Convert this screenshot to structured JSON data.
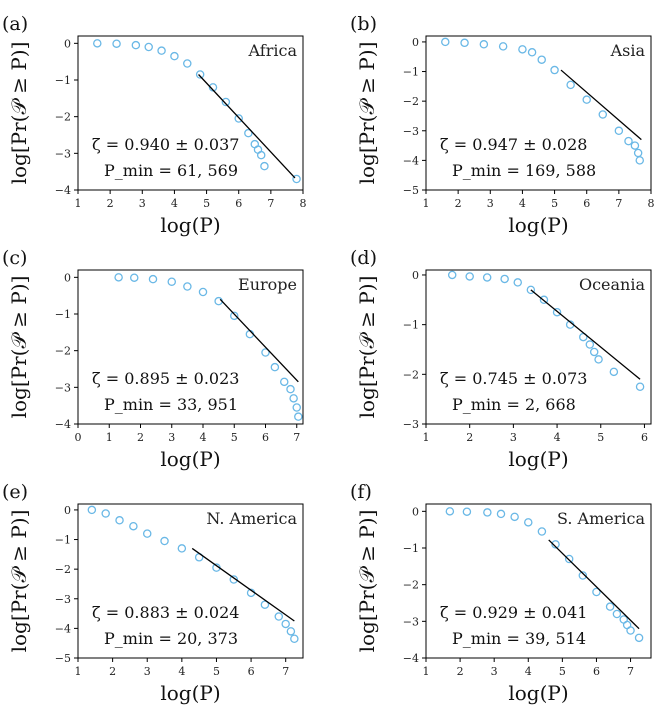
{
  "figure": {
    "xlabel": "log(P)",
    "ylabel": "log[Pr(𝒫 ≥ P)]"
  },
  "colors": {
    "marker": "#6ab8e6",
    "fit": "#000000",
    "axis": "#000000"
  },
  "chart_data": [
    {
      "type": "scatter",
      "panel_label": "(a)",
      "region": "Africa",
      "xlim": [
        1,
        8
      ],
      "ylim": [
        -4,
        0.2
      ],
      "xticks": [
        1,
        2,
        3,
        4,
        5,
        6,
        7,
        8
      ],
      "yticks": [
        0,
        -1,
        -2,
        -3,
        -4
      ],
      "series": [
        {
          "name": "empirical CCDF",
          "x": [
            1.6,
            2.2,
            2.8,
            3.2,
            3.6,
            4.0,
            4.4,
            4.8,
            5.2,
            5.6,
            6.0,
            6.3,
            6.5,
            6.6,
            6.7,
            6.8,
            7.8
          ],
          "y": [
            0,
            -0.01,
            -0.05,
            -0.1,
            -0.2,
            -0.35,
            -0.55,
            -0.85,
            -1.2,
            -1.6,
            -2.05,
            -2.45,
            -2.75,
            -2.9,
            -3.05,
            -3.35,
            -3.7
          ]
        }
      ],
      "fit": {
        "x": [
          4.75,
          7.75
        ],
        "y": [
          -0.85,
          -3.67
        ]
      },
      "zeta": "ζ = 0.940 ± 0.037",
      "pmin": "P_min = 61, 569"
    },
    {
      "type": "scatter",
      "panel_label": "(b)",
      "region": "Asia",
      "xlim": [
        1,
        8
      ],
      "ylim": [
        -5,
        0.2
      ],
      "xticks": [
        1,
        2,
        3,
        4,
        5,
        6,
        7,
        8
      ],
      "yticks": [
        0,
        -1,
        -2,
        -3,
        -4,
        -5
      ],
      "series": [
        {
          "name": "empirical CCDF",
          "x": [
            1.6,
            2.2,
            2.8,
            3.4,
            4.0,
            4.3,
            4.6,
            5.0,
            5.5,
            6.0,
            6.5,
            7.0,
            7.3,
            7.5,
            7.6,
            7.65
          ],
          "y": [
            0,
            -0.03,
            -0.08,
            -0.15,
            -0.25,
            -0.35,
            -0.6,
            -0.95,
            -1.45,
            -1.95,
            -2.45,
            -3.0,
            -3.35,
            -3.5,
            -3.75,
            -4.0
          ]
        }
      ],
      "fit": {
        "x": [
          5.2,
          7.7
        ],
        "y": [
          -0.95,
          -3.3
        ]
      },
      "zeta": "ζ = 0.947 ± 0.028",
      "pmin": "P_min = 169, 588"
    },
    {
      "type": "scatter",
      "panel_label": "(c)",
      "region": "Europe",
      "xlim": [
        0,
        7.2
      ],
      "ylim": [
        -4,
        0.2
      ],
      "xticks": [
        0,
        1,
        2,
        3,
        4,
        5,
        6,
        7
      ],
      "yticks": [
        0,
        -1,
        -2,
        -3,
        -4
      ],
      "series": [
        {
          "name": "empirical CCDF",
          "x": [
            1.3,
            1.8,
            2.4,
            3.0,
            3.5,
            4.0,
            4.5,
            5.0,
            5.5,
            6.0,
            6.3,
            6.6,
            6.8,
            6.9,
            7.0,
            7.05
          ],
          "y": [
            0,
            -0.01,
            -0.05,
            -0.12,
            -0.25,
            -0.4,
            -0.65,
            -1.05,
            -1.55,
            -2.05,
            -2.45,
            -2.85,
            -3.05,
            -3.3,
            -3.55,
            -3.8
          ]
        }
      ],
      "fit": {
        "x": [
          4.55,
          7.05
        ],
        "y": [
          -0.6,
          -2.85
        ]
      },
      "zeta": "ζ = 0.895 ± 0.023",
      "pmin": "P_min = 33, 951"
    },
    {
      "type": "scatter",
      "panel_label": "(d)",
      "region": "Oceania",
      "xlim": [
        1,
        6.15
      ],
      "ylim": [
        -3,
        0.1
      ],
      "xticks": [
        1,
        2,
        3,
        4,
        5,
        6
      ],
      "yticks": [
        0,
        -1,
        -2,
        -3
      ],
      "series": [
        {
          "name": "empirical CCDF",
          "x": [
            1.6,
            2.0,
            2.4,
            2.8,
            3.1,
            3.4,
            3.7,
            4.0,
            4.3,
            4.6,
            4.75,
            4.85,
            4.95,
            5.3,
            5.9
          ],
          "y": [
            0,
            -0.03,
            -0.05,
            -0.08,
            -0.15,
            -0.3,
            -0.5,
            -0.75,
            -1.0,
            -1.25,
            -1.4,
            -1.55,
            -1.7,
            -1.95,
            -2.25
          ]
        }
      ],
      "fit": {
        "x": [
          3.4,
          5.9
        ],
        "y": [
          -0.3,
          -2.1
        ]
      },
      "zeta": "ζ = 0.745 ± 0.073",
      "pmin": "P_min = 2, 668"
    },
    {
      "type": "scatter",
      "panel_label": "(e)",
      "region": "N. America",
      "xlim": [
        1,
        7.5
      ],
      "ylim": [
        -5,
        0.2
      ],
      "xticks": [
        1,
        2,
        3,
        4,
        5,
        6,
        7
      ],
      "yticks": [
        0,
        -1,
        -2,
        -3,
        -4,
        -5
      ],
      "series": [
        {
          "name": "empirical CCDF",
          "x": [
            1.4,
            1.8,
            2.2,
            2.6,
            3.0,
            3.5,
            4.0,
            4.5,
            5.0,
            5.5,
            6.0,
            6.4,
            6.8,
            7.0,
            7.15,
            7.25
          ],
          "y": [
            0,
            -0.12,
            -0.35,
            -0.55,
            -0.8,
            -1.05,
            -1.3,
            -1.6,
            -1.95,
            -2.35,
            -2.8,
            -3.2,
            -3.6,
            -3.85,
            -4.1,
            -4.35
          ]
        }
      ],
      "fit": {
        "x": [
          4.3,
          7.25
        ],
        "y": [
          -1.3,
          -3.75
        ]
      },
      "zeta": "ζ = 0.883 ± 0.024",
      "pmin": "P_min = 20, 373"
    },
    {
      "type": "scatter",
      "panel_label": "(f)",
      "region": "S. America",
      "xlim": [
        1,
        7.6
      ],
      "ylim": [
        -4,
        0.2
      ],
      "xticks": [
        1,
        2,
        3,
        4,
        5,
        6,
        7
      ],
      "yticks": [
        0,
        -1,
        -2,
        -3,
        -4
      ],
      "series": [
        {
          "name": "empirical CCDF",
          "x": [
            1.7,
            2.2,
            2.8,
            3.2,
            3.6,
            4.0,
            4.4,
            4.8,
            5.2,
            5.6,
            6.0,
            6.4,
            6.6,
            6.8,
            6.9,
            7.0,
            7.25
          ],
          "y": [
            0,
            -0.01,
            -0.03,
            -0.07,
            -0.15,
            -0.3,
            -0.55,
            -0.9,
            -1.3,
            -1.75,
            -2.2,
            -2.6,
            -2.8,
            -2.95,
            -3.1,
            -3.25,
            -3.45
          ]
        }
      ],
      "fit": {
        "x": [
          4.6,
          7.25
        ],
        "y": [
          -0.78,
          -3.2
        ]
      },
      "zeta": "ζ = 0.929 ± 0.041",
      "pmin": "P_min = 39, 514"
    }
  ]
}
